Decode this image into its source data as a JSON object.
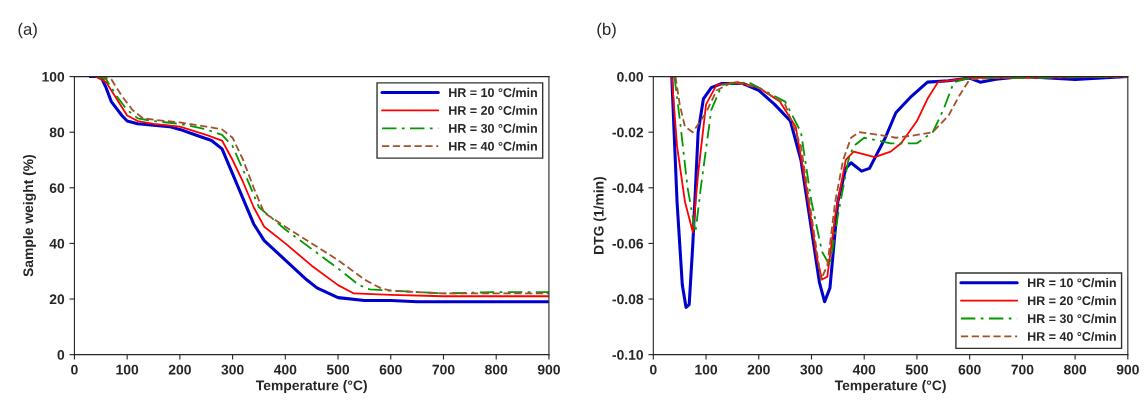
{
  "chart_data": [
    {
      "type": "line",
      "title": "(a)",
      "xlabel": "Temperature (°C)",
      "ylabel": "Sample weight (%)",
      "xlim": [
        0,
        900
      ],
      "ylim": [
        0,
        100
      ],
      "xticks": [
        0,
        100,
        200,
        300,
        400,
        500,
        600,
        700,
        800,
        900
      ],
      "yticks": [
        0,
        20,
        40,
        60,
        80,
        100
      ],
      "grid": false,
      "legend": "top right",
      "marker": "none",
      "series": [
        {
          "name": "HR = 10 °C/min",
          "color": "#0000cc",
          "line_style": "solid",
          "x": [
            30,
            50,
            60,
            70,
            90,
            100,
            120,
            150,
            180,
            200,
            230,
            260,
            280,
            300,
            320,
            340,
            360,
            400,
            440,
            460,
            500,
            550,
            600,
            650,
            700,
            800,
            900
          ],
          "values": [
            100,
            100,
            96,
            91,
            86,
            84,
            83,
            82.5,
            82,
            81,
            79,
            77,
            74,
            65,
            56,
            47,
            41,
            34,
            27,
            24,
            20.5,
            19.5,
            19.5,
            19,
            19,
            19,
            19
          ]
        },
        {
          "name": "HR = 20 °C/min",
          "color": "#ff0000",
          "line_style": "solid",
          "x": [
            40,
            60,
            80,
            100,
            120,
            150,
            200,
            250,
            280,
            300,
            320,
            340,
            360,
            400,
            450,
            500,
            530,
            600,
            700,
            900
          ],
          "values": [
            100,
            98,
            92,
            86,
            84,
            83,
            82,
            79,
            77,
            70,
            62,
            53,
            46,
            40,
            32,
            25,
            22,
            21.5,
            21,
            21
          ]
        },
        {
          "name": "HR = 30 °C/min",
          "color": "#009900",
          "line_style": "dashdot",
          "x": [
            45,
            60,
            80,
            100,
            120,
            150,
            200,
            250,
            280,
            300,
            330,
            350,
            400,
            450,
            500,
            540,
            560,
            600,
            700,
            800,
            900
          ],
          "values": [
            100,
            99,
            93,
            88,
            85,
            84,
            83,
            81,
            79,
            75,
            62,
            53,
            45,
            38,
            31,
            25,
            23.5,
            23,
            22,
            22.5,
            22.5
          ]
        },
        {
          "name": "HR = 40 °C/min",
          "color": "#a0522d",
          "line_style": "dashed",
          "x": [
            50,
            70,
            90,
            110,
            130,
            150,
            200,
            250,
            280,
            300,
            320,
            340,
            360,
            400,
            450,
            500,
            550,
            580,
            600,
            700,
            900
          ],
          "values": [
            100,
            99,
            93,
            88,
            85,
            84.5,
            83.5,
            82,
            81,
            78,
            70,
            60,
            51,
            46,
            40,
            34,
            27,
            24,
            23,
            22,
            22
          ]
        }
      ]
    },
    {
      "type": "line",
      "title": "(b)",
      "xlabel": "Temperature (°C)",
      "ylabel": "DTG (1/min)",
      "xlim": [
        0,
        900
      ],
      "ylim": [
        -0.1,
        0
      ],
      "xticks": [
        0,
        100,
        200,
        300,
        400,
        500,
        600,
        700,
        800,
        900
      ],
      "yticks": [
        {
          "value": -0.1,
          "label": "-0.10"
        },
        {
          "value": -0.08,
          "label": "-0.08"
        },
        {
          "value": -0.06,
          "label": "-0.06"
        },
        {
          "value": -0.04,
          "label": "-0.04"
        },
        {
          "value": -0.02,
          "label": "-0.02"
        },
        {
          "value": 0,
          "label": "0.00"
        }
      ],
      "grid": false,
      "legend": "bottom right",
      "marker": "none",
      "series": [
        {
          "name": "HR = 10 °C/min",
          "color": "#0000cc",
          "line_style": "solid",
          "x": [
            35,
            45,
            55,
            62,
            68,
            75,
            85,
            95,
            110,
            130,
            170,
            200,
            230,
            260,
            280,
            300,
            315,
            325,
            335,
            350,
            365,
            375,
            395,
            410,
            440,
            460,
            490,
            520,
            560,
            600,
            620,
            650,
            700,
            750,
            800,
            900
          ],
          "values": [
            0,
            -0.045,
            -0.075,
            -0.083,
            -0.082,
            -0.06,
            -0.02,
            -0.008,
            -0.004,
            -0.0025,
            -0.0025,
            -0.005,
            -0.01,
            -0.016,
            -0.03,
            -0.055,
            -0.074,
            -0.081,
            -0.076,
            -0.045,
            -0.033,
            -0.031,
            -0.034,
            -0.033,
            -0.022,
            -0.013,
            -0.007,
            -0.002,
            -0.0015,
            -0.0005,
            -0.002,
            -0.001,
            0,
            -0.0005,
            -0.001,
            0
          ]
        },
        {
          "name": "HR = 20 °C/min",
          "color": "#ff0000",
          "line_style": "solid",
          "x": [
            35,
            45,
            60,
            75,
            85,
            100,
            120,
            160,
            200,
            240,
            270,
            290,
            310,
            320,
            330,
            345,
            365,
            380,
            420,
            450,
            470,
            500,
            520,
            540,
            600,
            700,
            900
          ],
          "values": [
            0,
            -0.025,
            -0.045,
            -0.056,
            -0.035,
            -0.01,
            -0.003,
            -0.002,
            -0.004,
            -0.009,
            -0.018,
            -0.04,
            -0.065,
            -0.073,
            -0.072,
            -0.05,
            -0.03,
            -0.027,
            -0.029,
            -0.027,
            -0.024,
            -0.016,
            -0.008,
            -0.002,
            -0.0005,
            -0.0005,
            0
          ]
        },
        {
          "name": "HR = 30 °C/min",
          "color": "#009900",
          "line_style": "dashdot",
          "x": [
            40,
            50,
            65,
            80,
            90,
            110,
            130,
            180,
            220,
            250,
            280,
            300,
            320,
            335,
            350,
            370,
            380,
            400,
            450,
            500,
            530,
            550,
            570,
            600,
            700,
            900
          ],
          "values": [
            0,
            -0.015,
            -0.04,
            -0.056,
            -0.04,
            -0.012,
            -0.003,
            -0.002,
            -0.006,
            -0.009,
            -0.02,
            -0.045,
            -0.063,
            -0.068,
            -0.05,
            -0.03,
            -0.025,
            -0.022,
            -0.024,
            -0.024,
            -0.02,
            -0.012,
            -0.002,
            -0.0005,
            -0.0005,
            0
          ]
        },
        {
          "name": "HR = 40 °C/min",
          "color": "#a0522d",
          "line_style": "dashed",
          "x": [
            42,
            50,
            60,
            75,
            100,
            120,
            150,
            200,
            250,
            280,
            300,
            318,
            330,
            345,
            360,
            375,
            390,
            430,
            460,
            500,
            530,
            560,
            580,
            600,
            700,
            900
          ],
          "values": [
            0,
            -0.01,
            -0.018,
            -0.02,
            -0.013,
            -0.005,
            -0.002,
            -0.004,
            -0.01,
            -0.025,
            -0.05,
            -0.073,
            -0.068,
            -0.045,
            -0.03,
            -0.022,
            -0.02,
            -0.021,
            -0.022,
            -0.021,
            -0.02,
            -0.014,
            -0.007,
            -0.001,
            0,
            0
          ]
        }
      ]
    }
  ]
}
